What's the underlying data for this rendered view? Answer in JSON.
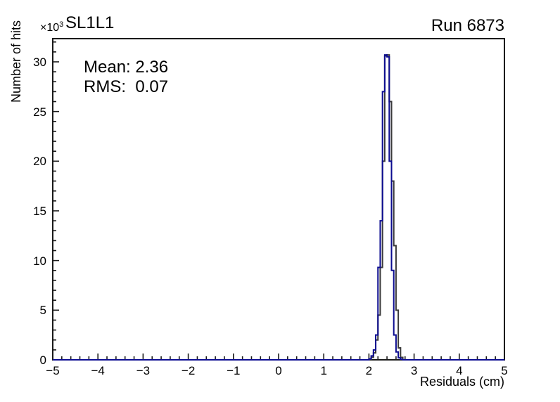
{
  "header": {
    "title": "SL1L1",
    "run_label": "Run 6873"
  },
  "stats": {
    "mean_line": "Mean: 2.36",
    "rms_line": "RMS:  0.07"
  },
  "axes": {
    "y_exponent": {
      "base": "×10",
      "sup": "3"
    },
    "x_title": "Residuals (cm)",
    "y_title": "Number of hits"
  },
  "colors": {
    "frame": "#1a1a1a",
    "tick": "#1a1a1a",
    "hist_main": "#3a3a3a",
    "hist_overlay": "#0c0c90",
    "text": "#000000"
  },
  "chart_data": {
    "type": "bar",
    "subtype": "step-histogram-overlay",
    "title": "SL1L1",
    "annotation": "Run 6873",
    "xlabel": "Residuals (cm)",
    "ylabel": "Number of hits",
    "y_unit_exponent": "x10^3",
    "xlim": [
      -5,
      5
    ],
    "ylim": [
      0,
      32335
    ],
    "x_tick_values": [
      -5,
      -4,
      -3,
      -2,
      -1,
      0,
      1,
      2,
      3,
      4,
      5
    ],
    "x_tick_labels": [
      "−5",
      "−4",
      "−3",
      "−2",
      "−1",
      "0",
      "1",
      "2",
      "3",
      "4",
      "5"
    ],
    "y_tick_values": [
      0,
      5000,
      10000,
      15000,
      20000,
      25000,
      30000
    ],
    "y_tick_labels": [
      "0",
      "5",
      "10",
      "15",
      "20",
      "25",
      "30"
    ],
    "x_minor_step": 0.2,
    "y_minor_step": 1000,
    "grid": false,
    "legend": "none",
    "stats": {
      "mean": 2.36,
      "rms": 0.07
    },
    "series": [
      {
        "name": "residuals-histogram",
        "color": "#3a3a3a",
        "bin_width": 0.05,
        "x_start": 2.0,
        "values": [
          50,
          250,
          700,
          2000,
          4500,
          9300,
          20000,
          30600,
          30700,
          26000,
          18000,
          11500,
          5000,
          1200,
          250
        ]
      },
      {
        "name": "residuals-histogram-overlay",
        "color": "#0c0c90",
        "bin_width": 0.05,
        "x_start": 2.0,
        "values": [
          100,
          400,
          1000,
          2500,
          9300,
          14000,
          27000,
          30700,
          30500,
          20000,
          9000,
          2500,
          800,
          200,
          50
        ]
      }
    ]
  }
}
